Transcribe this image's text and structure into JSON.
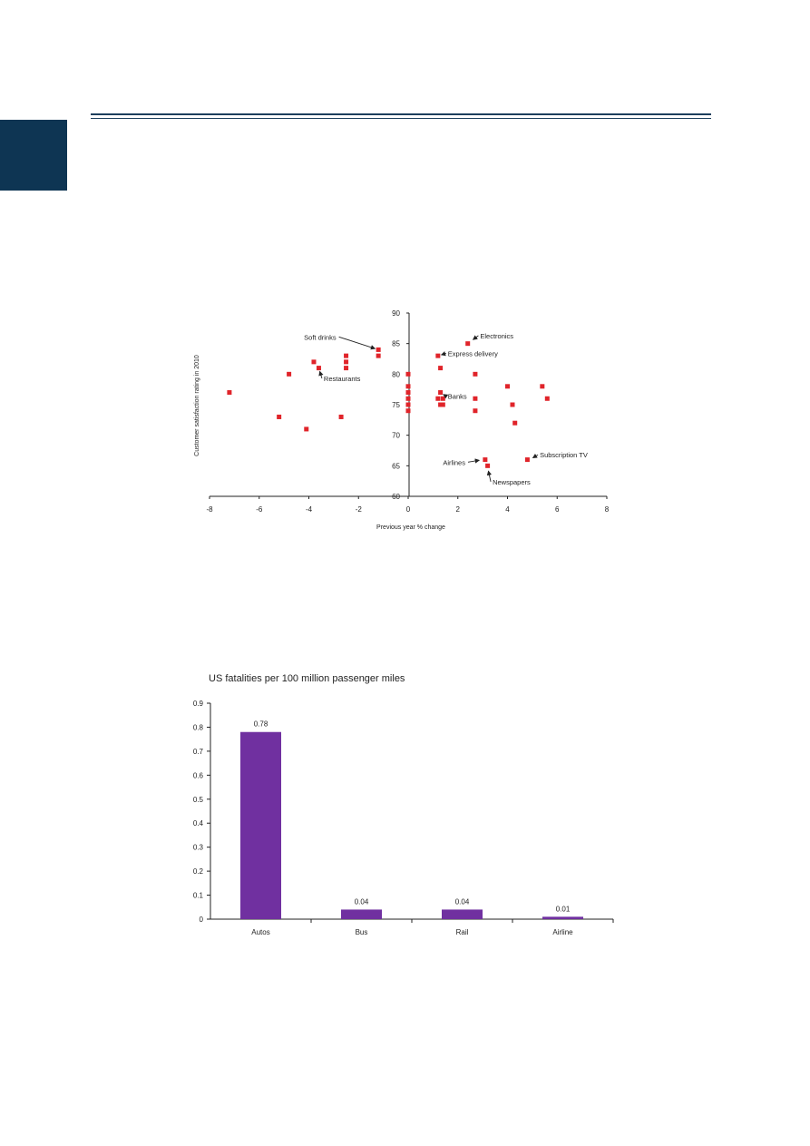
{
  "page": {
    "accent_color": "#0e3553",
    "rule_color": "#1d3f5c"
  },
  "chart_data": [
    {
      "type": "scatter",
      "title": "",
      "xlabel": "Previous year % change",
      "ylabel": "Customer satisfaction rating in 2010",
      "xlim": [
        -8,
        8
      ],
      "ylim": [
        60,
        90
      ],
      "x_ticks": [
        "-8",
        "-6",
        "-4",
        "-2",
        "0",
        "2",
        "4",
        "6",
        "8"
      ],
      "y_ticks": [
        "60",
        "65",
        "70",
        "75",
        "80",
        "85",
        "90"
      ],
      "grid": false,
      "marker_color": "#e0242a",
      "points": [
        {
          "x": -7.2,
          "y": 77
        },
        {
          "x": -5.2,
          "y": 73
        },
        {
          "x": -4.8,
          "y": 80
        },
        {
          "x": -4.1,
          "y": 71
        },
        {
          "x": -3.8,
          "y": 82
        },
        {
          "x": -3.6,
          "y": 81
        },
        {
          "x": -2.7,
          "y": 73
        },
        {
          "x": -2.5,
          "y": 83
        },
        {
          "x": -2.5,
          "y": 82
        },
        {
          "x": -2.5,
          "y": 81
        },
        {
          "x": -1.2,
          "y": 84
        },
        {
          "x": -1.2,
          "y": 83
        },
        {
          "x": 0.0,
          "y": 80
        },
        {
          "x": 0.0,
          "y": 78
        },
        {
          "x": 0.0,
          "y": 77
        },
        {
          "x": 0.0,
          "y": 76
        },
        {
          "x": 0.0,
          "y": 75
        },
        {
          "x": 0.0,
          "y": 74
        },
        {
          "x": 1.2,
          "y": 83
        },
        {
          "x": 1.3,
          "y": 81
        },
        {
          "x": 1.3,
          "y": 77
        },
        {
          "x": 1.2,
          "y": 76
        },
        {
          "x": 1.4,
          "y": 76
        },
        {
          "x": 1.3,
          "y": 75
        },
        {
          "x": 1.4,
          "y": 75
        },
        {
          "x": 2.4,
          "y": 85
        },
        {
          "x": 2.7,
          "y": 80
        },
        {
          "x": 2.7,
          "y": 76
        },
        {
          "x": 2.7,
          "y": 74
        },
        {
          "x": 3.1,
          "y": 66
        },
        {
          "x": 3.2,
          "y": 65
        },
        {
          "x": 4.0,
          "y": 78
        },
        {
          "x": 4.2,
          "y": 75
        },
        {
          "x": 4.3,
          "y": 72
        },
        {
          "x": 4.8,
          "y": 66
        },
        {
          "x": 5.4,
          "y": 78
        },
        {
          "x": 5.6,
          "y": 76
        }
      ],
      "annotations": [
        {
          "text": "Soft drinks",
          "x": -1.2,
          "y": 84,
          "label_x": -2.9,
          "label_y": 86.1,
          "anchor": "end"
        },
        {
          "text": "Electronics",
          "x": 2.5,
          "y": 85.3,
          "label_x": 2.9,
          "label_y": 86.3,
          "anchor": "start"
        },
        {
          "text": "Express delivery",
          "x": 1.2,
          "y": 83,
          "label_x": 1.6,
          "label_y": 83.4,
          "anchor": "start"
        },
        {
          "text": "Restaurants",
          "x": -3.6,
          "y": 81,
          "label_x": -3.4,
          "label_y": 79.3,
          "anchor": "start"
        },
        {
          "text": "Banks",
          "x": 1.3,
          "y": 77,
          "label_x": 1.6,
          "label_y": 76.4,
          "anchor": "start"
        },
        {
          "text": "Airlines",
          "x": 3.0,
          "y": 66,
          "label_x": 2.3,
          "label_y": 65.6,
          "anchor": "end"
        },
        {
          "text": "Subscription TV",
          "x": 4.9,
          "y": 66,
          "label_x": 5.3,
          "label_y": 66.8,
          "anchor": "start"
        },
        {
          "text": "Newspapers",
          "x": 3.2,
          "y": 64.7,
          "label_x": 3.4,
          "label_y": 62.4,
          "anchor": "start"
        }
      ]
    },
    {
      "type": "bar",
      "title": "US fatalities per 100 million passenger miles",
      "xlabel": "",
      "ylabel": "",
      "categories": [
        "Autos",
        "Bus",
        "Rail",
        "Airline"
      ],
      "values": [
        0.78,
        0.04,
        0.04,
        0.01
      ],
      "value_labels": [
        "0.78",
        "0.04",
        "0.04",
        "0.01"
      ],
      "ylim": [
        0,
        0.9
      ],
      "y_ticks": [
        "0",
        "0.1",
        "0.2",
        "0.3",
        "0.4",
        "0.5",
        "0.6",
        "0.7",
        "0.8",
        "0.9"
      ],
      "grid": false,
      "bar_color": "#7030a0"
    }
  ]
}
